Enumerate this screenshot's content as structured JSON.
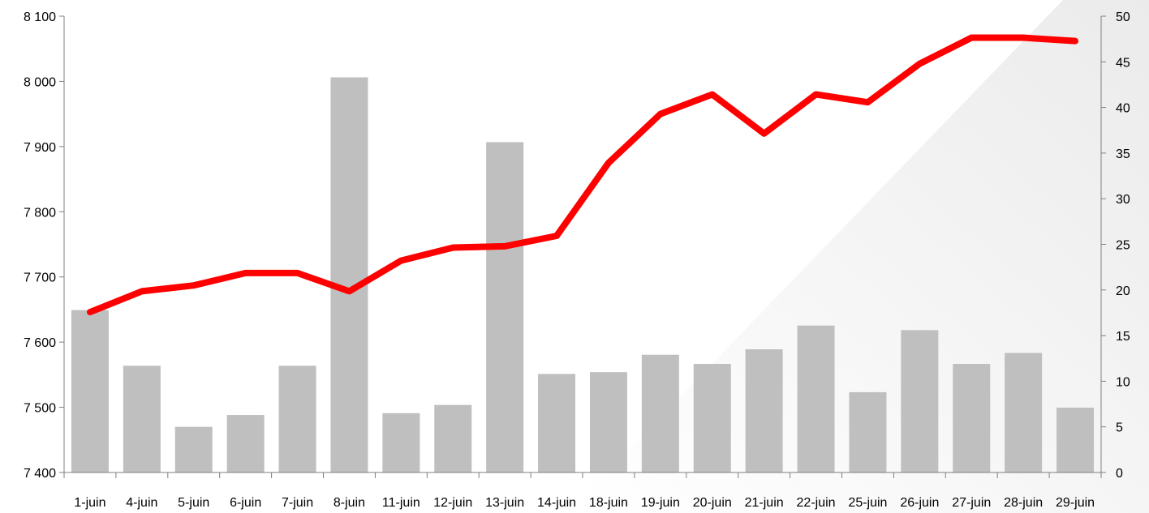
{
  "chart_data": {
    "type": "bar+line",
    "categories": [
      "1-juin",
      "4-juin",
      "5-juin",
      "6-juin",
      "7-juin",
      "8-juin",
      "11-juin",
      "12-juin",
      "13-juin",
      "14-juin",
      "18-juin",
      "19-juin",
      "20-juin",
      "21-juin",
      "22-juin",
      "25-juin",
      "26-juin",
      "27-juin",
      "28-juin",
      "29-juin"
    ],
    "series": [
      {
        "type": "bar",
        "axis": "right",
        "color": "#bfbfbf",
        "values": [
          17.8,
          11.7,
          5.0,
          6.3,
          11.7,
          43.3,
          6.5,
          7.4,
          36.2,
          10.8,
          11.0,
          12.9,
          11.9,
          13.5,
          16.1,
          8.8,
          15.6,
          11.9,
          13.1,
          7.1
        ]
      },
      {
        "type": "line",
        "axis": "left",
        "color": "#ff0000",
        "values": [
          7646,
          7678,
          7687,
          7706,
          7706,
          7678,
          7725,
          7745,
          7747,
          7763,
          7875,
          7950,
          7980,
          7920,
          7980,
          7968,
          8027,
          8067,
          8067,
          8062
        ]
      }
    ],
    "y_left": {
      "min": 7400,
      "max": 8100,
      "ticks": [
        "7 400",
        "7 500",
        "7 600",
        "7 700",
        "7 800",
        "7 900",
        "8 000",
        "8 100"
      ]
    },
    "y_right": {
      "min": 0,
      "max": 50,
      "ticks": [
        "0",
        "5",
        "10",
        "15",
        "20",
        "25",
        "30",
        "35",
        "40",
        "45",
        "50"
      ]
    },
    "grid": false,
    "legend": "none"
  }
}
